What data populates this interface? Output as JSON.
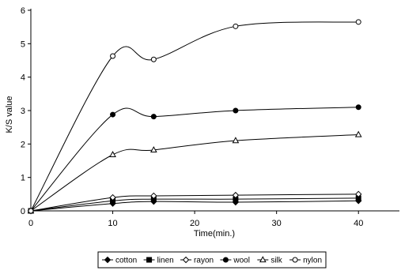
{
  "chart_data": {
    "type": "line",
    "title": "",
    "xlabel": "Time(min.)",
    "ylabel": "K/S value",
    "xlim": [
      0,
      45
    ],
    "ylim": [
      0,
      6
    ],
    "x_ticks": [
      0,
      10,
      20,
      30,
      40
    ],
    "y_ticks": [
      0,
      1,
      2,
      3,
      4,
      5,
      6
    ],
    "grid": false,
    "legend_position": "bottom",
    "x": [
      0,
      10,
      15,
      25,
      40
    ],
    "series": [
      {
        "name": "cotton",
        "marker": "diamond-filled",
        "values": [
          0.0,
          0.22,
          0.28,
          0.26,
          0.3
        ]
      },
      {
        "name": "linen",
        "marker": "square-filled",
        "values": [
          0.0,
          0.3,
          0.35,
          0.35,
          0.38
        ]
      },
      {
        "name": "rayon",
        "marker": "diamond-open",
        "values": [
          0.0,
          0.4,
          0.45,
          0.47,
          0.5
        ]
      },
      {
        "name": "wool",
        "marker": "circle-filled",
        "values": [
          0.0,
          2.88,
          2.82,
          3.0,
          3.1
        ]
      },
      {
        "name": "silk",
        "marker": "triangle-open",
        "values": [
          0.0,
          1.68,
          1.82,
          2.1,
          2.28
        ]
      },
      {
        "name": "nylon",
        "marker": "circle-open",
        "values": [
          0.0,
          4.63,
          4.53,
          5.52,
          5.65
        ]
      }
    ],
    "color": "#000000"
  }
}
